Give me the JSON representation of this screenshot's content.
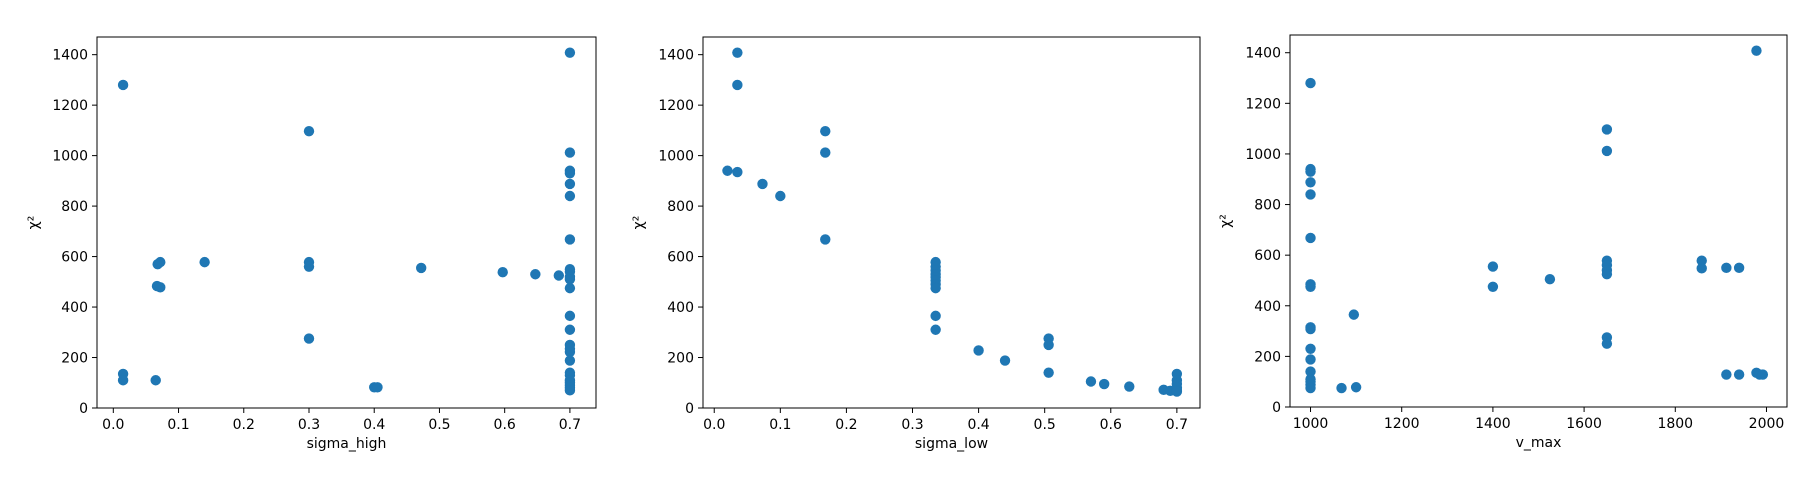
{
  "chart_data": [
    {
      "type": "scatter",
      "xlabel": "sigma_high",
      "ylabel": "χ²",
      "xlim": [
        -0.025,
        0.74
      ],
      "ylim": [
        0,
        1470
      ],
      "xticks": [
        0.0,
        0.1,
        0.2,
        0.3,
        0.4,
        0.5,
        0.6,
        0.7
      ],
      "xtick_labels": [
        "0.0",
        "0.1",
        "0.2",
        "0.3",
        "0.4",
        "0.5",
        "0.6",
        "0.7"
      ],
      "yticks": [
        0,
        200,
        400,
        600,
        800,
        1000,
        1200,
        1400
      ],
      "ytick_labels": [
        "0",
        "200",
        "400",
        "600",
        "800",
        "1000",
        "1200",
        "1400"
      ],
      "marker_color": "#1f77b4",
      "points": [
        [
          0.015,
          1280
        ],
        [
          0.015,
          135
        ],
        [
          0.015,
          110
        ],
        [
          0.065,
          110
        ],
        [
          0.068,
          570
        ],
        [
          0.072,
          578
        ],
        [
          0.067,
          483
        ],
        [
          0.072,
          478
        ],
        [
          0.14,
          578
        ],
        [
          0.3,
          1097
        ],
        [
          0.3,
          578
        ],
        [
          0.3,
          560
        ],
        [
          0.3,
          275
        ],
        [
          0.4,
          82
        ],
        [
          0.405,
          82
        ],
        [
          0.472,
          555
        ],
        [
          0.597,
          538
        ],
        [
          0.647,
          530
        ],
        [
          0.683,
          525
        ],
        [
          0.7,
          1408
        ],
        [
          0.7,
          1012
        ],
        [
          0.7,
          940
        ],
        [
          0.7,
          930
        ],
        [
          0.7,
          888
        ],
        [
          0.7,
          840
        ],
        [
          0.7,
          668
        ],
        [
          0.7,
          550
        ],
        [
          0.7,
          540
        ],
        [
          0.7,
          520
        ],
        [
          0.7,
          510
        ],
        [
          0.7,
          475
        ],
        [
          0.7,
          365
        ],
        [
          0.7,
          310
        ],
        [
          0.7,
          250
        ],
        [
          0.7,
          235
        ],
        [
          0.7,
          222
        ],
        [
          0.7,
          188
        ],
        [
          0.7,
          140
        ],
        [
          0.7,
          130
        ],
        [
          0.7,
          110
        ],
        [
          0.7,
          100
        ],
        [
          0.7,
          90
        ],
        [
          0.7,
          80
        ],
        [
          0.7,
          70
        ]
      ]
    },
    {
      "type": "scatter",
      "xlabel": "sigma_low",
      "ylabel": "χ²",
      "xlim": [
        -0.017,
        0.735
      ],
      "ylim": [
        0,
        1470
      ],
      "xticks": [
        0.0,
        0.1,
        0.2,
        0.3,
        0.4,
        0.5,
        0.6,
        0.7
      ],
      "xtick_labels": [
        "0.0",
        "0.1",
        "0.2",
        "0.3",
        "0.4",
        "0.5",
        "0.6",
        "0.7"
      ],
      "yticks": [
        0,
        200,
        400,
        600,
        800,
        1000,
        1200,
        1400
      ],
      "ytick_labels": [
        "0",
        "200",
        "400",
        "600",
        "800",
        "1000",
        "1200",
        "1400"
      ],
      "marker_color": "#1f77b4",
      "points": [
        [
          0.035,
          1408
        ],
        [
          0.035,
          1280
        ],
        [
          0.02,
          940
        ],
        [
          0.035,
          935
        ],
        [
          0.073,
          888
        ],
        [
          0.1,
          840
        ],
        [
          0.168,
          1097
        ],
        [
          0.168,
          1012
        ],
        [
          0.168,
          668
        ],
        [
          0.335,
          578
        ],
        [
          0.335,
          560
        ],
        [
          0.335,
          545
        ],
        [
          0.335,
          530
        ],
        [
          0.335,
          518
        ],
        [
          0.335,
          505
        ],
        [
          0.335,
          490
        ],
        [
          0.335,
          475
        ],
        [
          0.335,
          365
        ],
        [
          0.335,
          310
        ],
        [
          0.4,
          228
        ],
        [
          0.44,
          188
        ],
        [
          0.506,
          275
        ],
        [
          0.506,
          250
        ],
        [
          0.506,
          140
        ],
        [
          0.57,
          105
        ],
        [
          0.59,
          95
        ],
        [
          0.628,
          85
        ],
        [
          0.68,
          72
        ],
        [
          0.69,
          68
        ],
        [
          0.7,
          135
        ],
        [
          0.7,
          110
        ],
        [
          0.7,
          95
        ],
        [
          0.7,
          80
        ],
        [
          0.7,
          70
        ],
        [
          0.7,
          65
        ]
      ]
    },
    {
      "type": "scatter",
      "xlabel": "v_max",
      "ylabel": "χ²",
      "xlim": [
        955,
        2045
      ],
      "ylim": [
        0,
        1470
      ],
      "xticks": [
        1000,
        1200,
        1400,
        1600,
        1800,
        2000
      ],
      "xtick_labels": [
        "1000",
        "1200",
        "1400",
        "1600",
        "1800",
        "2000"
      ],
      "yticks": [
        0,
        200,
        400,
        600,
        800,
        1000,
        1200,
        1400
      ],
      "ytick_labels": [
        "0",
        "200",
        "400",
        "600",
        "800",
        "1000",
        "1200",
        "1400"
      ],
      "marker_color": "#1f77b4",
      "points": [
        [
          1000,
          1280
        ],
        [
          1000,
          940
        ],
        [
          1000,
          930
        ],
        [
          1000,
          888
        ],
        [
          1000,
          840
        ],
        [
          1000,
          668
        ],
        [
          1000,
          485
        ],
        [
          1000,
          475
        ],
        [
          1000,
          315
        ],
        [
          1000,
          308
        ],
        [
          1000,
          230
        ],
        [
          1000,
          188
        ],
        [
          1000,
          140
        ],
        [
          1000,
          110
        ],
        [
          1000,
          100
        ],
        [
          1000,
          88
        ],
        [
          1000,
          75
        ],
        [
          1068,
          75
        ],
        [
          1095,
          365
        ],
        [
          1100,
          78
        ],
        [
          1400,
          555
        ],
        [
          1400,
          475
        ],
        [
          1525,
          505
        ],
        [
          1650,
          1097
        ],
        [
          1650,
          1012
        ],
        [
          1650,
          578
        ],
        [
          1650,
          560
        ],
        [
          1650,
          540
        ],
        [
          1650,
          525
        ],
        [
          1650,
          275
        ],
        [
          1650,
          250
        ],
        [
          1858,
          578
        ],
        [
          1858,
          548
        ],
        [
          1912,
          550
        ],
        [
          1912,
          128
        ],
        [
          1940,
          550
        ],
        [
          1940,
          128
        ],
        [
          1978,
          1408
        ],
        [
          1978,
          135
        ],
        [
          1985,
          128
        ],
        [
          1992,
          128
        ]
      ]
    }
  ]
}
